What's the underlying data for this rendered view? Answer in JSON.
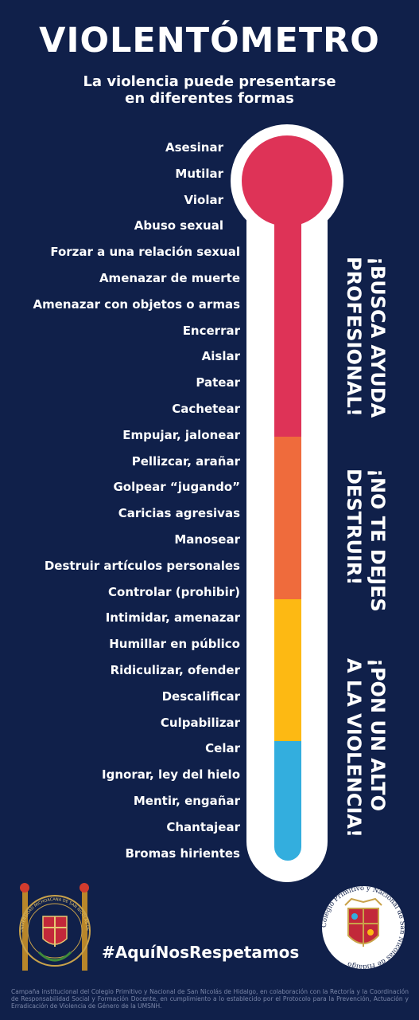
{
  "header": {
    "title": "VIOLENTÓMETRO",
    "subtitle_line1": "La violencia puede presentarse",
    "subtitle_line2": "en diferentes formas"
  },
  "levels": [
    "Asesinar",
    "Mutilar",
    "Violar",
    "Abuso sexual",
    "Forzar a una relación sexual",
    "Amenazar de muerte",
    "Amenazar con objetos o armas",
    "Encerrar",
    "Aislar",
    "Patear",
    "Cachetear",
    "Empujar, jalonear",
    "Pellizcar, arañar",
    "Golpear “jugando”",
    "Caricias agresivas",
    "Manosear",
    "Destruir artículos personales",
    "Controlar (prohibir)",
    "Intimidar, amenazar",
    "Humillar en público",
    "Ridiculizar, ofender",
    "Descalificar",
    "Culpabilizar",
    "Celar",
    "Ignorar, ley del hielo",
    "Mentir, engañar",
    "Chantajear",
    "Bromas hirientes"
  ],
  "side_messages": {
    "red_line1": "¡BUSCA AYUDA",
    "red_line2": "PROFESIONAL!",
    "orange_line1": "¡NO TE DEJES",
    "orange_line2": "DESTRUIR!",
    "yellow_line1": "¡PON UN ALTO",
    "yellow_line2": "A LA VIOLENCIA!"
  },
  "colors": {
    "background": "#10204a",
    "red": "#de3357",
    "orange": "#ef6b3c",
    "yellow": "#fdb913",
    "blue": "#33aede"
  },
  "footer": {
    "hashtag": "#AquíNosRespetamos",
    "disclaimer": "Campaña institucional del Colegio Primitivo y Nacional de San Nicolás de Hidalgo, en colaboración con la Rectoría y la Coordinación de Responsabilidad Social y Formación Docente, en cumplimiento a lo establecido por el Protocolo para la Prevención, Actuación y Erradicación de Violencia de Género de la UMSNH.",
    "left_logo_text": "UNIVERSIDAD MICHOACANA DE SAN NICOLÁS DE HIDALGO",
    "right_logo_text": "Colegio Primitivo y Nacional de San Nicolás de Hidalgo"
  }
}
